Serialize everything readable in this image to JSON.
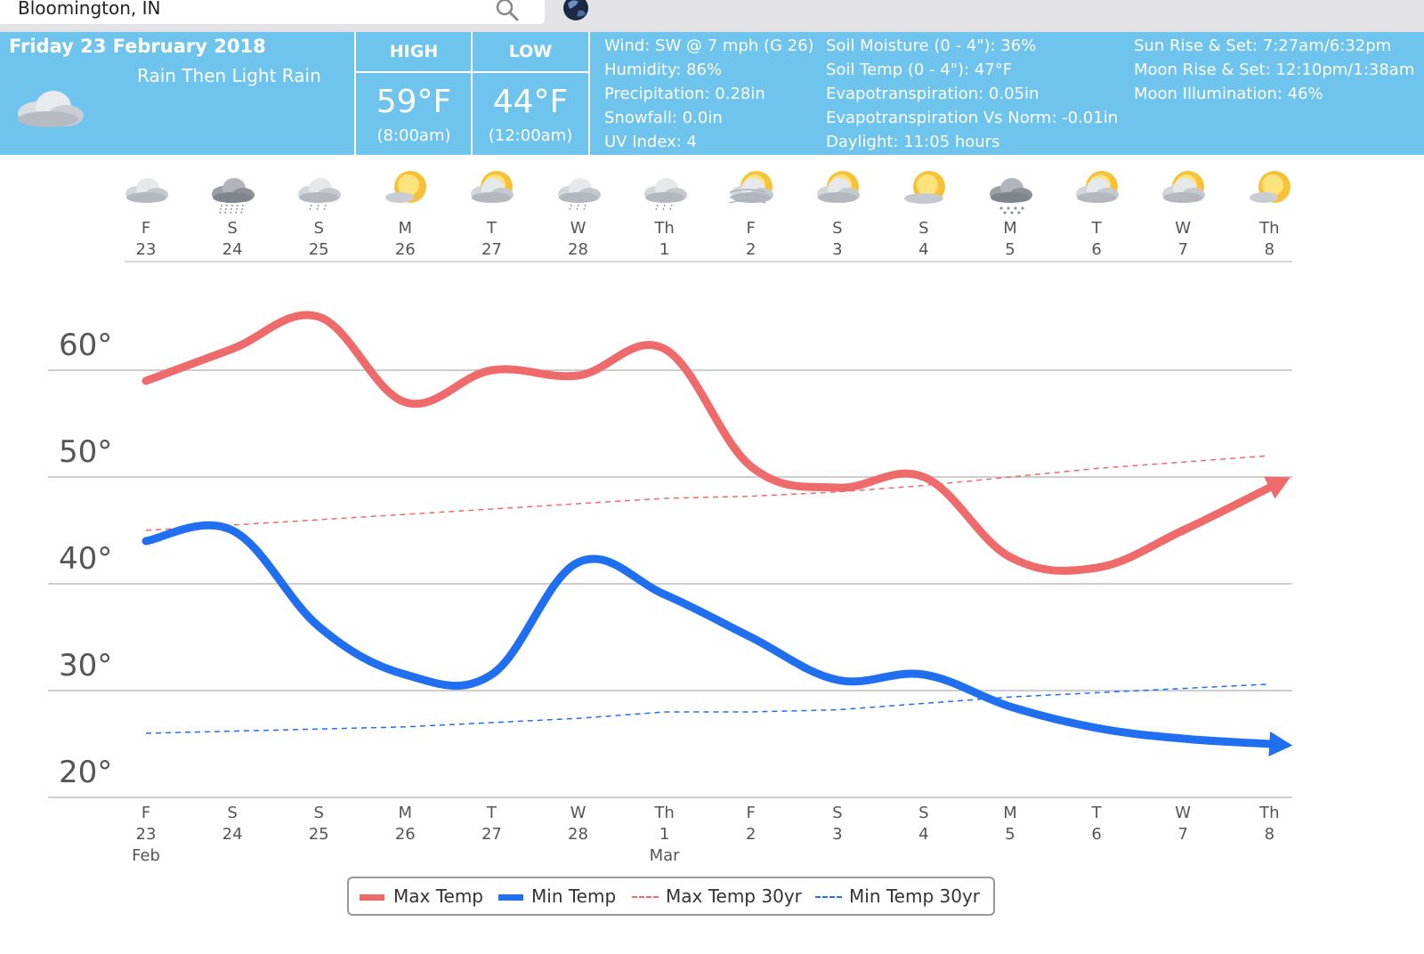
{
  "search": {
    "value": "Bloomington, IN"
  },
  "header": {
    "date": "Friday 23 February 2018",
    "condition": "Rain Then Light Rain",
    "high": {
      "title": "HIGH",
      "temp": "59°F",
      "time": "(8:00am)"
    },
    "low": {
      "title": "LOW",
      "temp": "44°F",
      "time": "(12:00am)"
    },
    "details_1": [
      "Wind: SW @ 7 mph (G 26)",
      "Humidity: 86%",
      "Precipitation: 0.28in",
      "Snowfall: 0.0in",
      "UV Index: 4"
    ],
    "details_2": [
      "Soil Moisture (0 - 4\"): 36%",
      "Soil Temp (0 - 4\"): 47°F",
      "Evapotranspiration: 0.05in",
      "Evapotranspiration Vs Norm: -0.01in",
      "Daylight: 11:05 hours"
    ],
    "details_3": [
      "Sun Rise & Set: 7:27am/6:32pm",
      "Moon Rise & Set: 12:10pm/1:38am",
      "Moon Illumination: 46%"
    ]
  },
  "days": [
    {
      "letter": "F",
      "num": "23",
      "icon": "cloud-icon"
    },
    {
      "letter": "S",
      "num": "24",
      "icon": "rain-cloud-icon"
    },
    {
      "letter": "S",
      "num": "25",
      "icon": "light-rain-cloud-icon"
    },
    {
      "letter": "M",
      "num": "26",
      "icon": "partly-sunny-icon"
    },
    {
      "letter": "T",
      "num": "27",
      "icon": "partly-cloudy-icon"
    },
    {
      "letter": "W",
      "num": "28",
      "icon": "light-rain-cloud-icon"
    },
    {
      "letter": "Th",
      "num": "1",
      "icon": "light-rain-cloud-icon"
    },
    {
      "letter": "F",
      "num": "2",
      "icon": "sun-wind-icon"
    },
    {
      "letter": "S",
      "num": "3",
      "icon": "partly-cloudy-icon"
    },
    {
      "letter": "S",
      "num": "4",
      "icon": "mostly-sunny-icon"
    },
    {
      "letter": "M",
      "num": "5",
      "icon": "snow-cloud-icon"
    },
    {
      "letter": "T",
      "num": "6",
      "icon": "partly-cloudy-icon"
    },
    {
      "letter": "W",
      "num": "7",
      "icon": "partly-cloudy-icon"
    },
    {
      "letter": "Th",
      "num": "8",
      "icon": "partly-sunny-icon"
    }
  ],
  "chart_data": {
    "type": "line",
    "categories": [
      "F 23",
      "S 24",
      "S 25",
      "M 26",
      "T 27",
      "W 28",
      "Th 1",
      "F 2",
      "S 3",
      "S 4",
      "M 5",
      "T 6",
      "W 7",
      "Th 8"
    ],
    "category_letters": [
      "F",
      "S",
      "S",
      "M",
      "T",
      "W",
      "Th",
      "F",
      "S",
      "S",
      "M",
      "T",
      "W",
      "Th"
    ],
    "category_nums": [
      "23",
      "24",
      "25",
      "26",
      "27",
      "28",
      "1",
      "2",
      "3",
      "4",
      "5",
      "6",
      "7",
      "8"
    ],
    "month_labels": [
      {
        "index": 0,
        "label": "Feb"
      },
      {
        "index": 6,
        "label": "Mar"
      }
    ],
    "ylim": [
      18,
      64
    ],
    "yticks": [
      20,
      30,
      40,
      50,
      60
    ],
    "ytick_labels": [
      "20°",
      "30°",
      "40°",
      "50°",
      "60°"
    ],
    "series": [
      {
        "name": "Max Temp",
        "color": "#ef6b6b",
        "style": "solid",
        "values": [
          59,
          62,
          65,
          57,
          60,
          59.5,
          62,
          51,
          49,
          50,
          42.5,
          41.5,
          45,
          49
        ]
      },
      {
        "name": "Min Temp",
        "color": "#1f6ff0",
        "style": "solid",
        "values": [
          44,
          45,
          36,
          31.5,
          31.5,
          42,
          39,
          35,
          31,
          31.5,
          28.5,
          26.5,
          25.5,
          25
        ]
      },
      {
        "name": "Max Temp 30yr",
        "color": "#ef6b6b",
        "style": "dashed",
        "values": [
          45,
          45.5,
          46,
          46.5,
          47,
          47.5,
          48,
          48.2,
          48.6,
          49.2,
          50,
          50.8,
          51.4,
          52
        ]
      },
      {
        "name": "Min Temp 30yr",
        "color": "#1f6ff0",
        "style": "dashed",
        "values": [
          26,
          26.2,
          26.4,
          26.6,
          27,
          27.4,
          28,
          28,
          28.2,
          28.8,
          29.4,
          29.8,
          30.2,
          30.6
        ]
      }
    ],
    "legend_position": "bottom-center",
    "grid": true
  }
}
